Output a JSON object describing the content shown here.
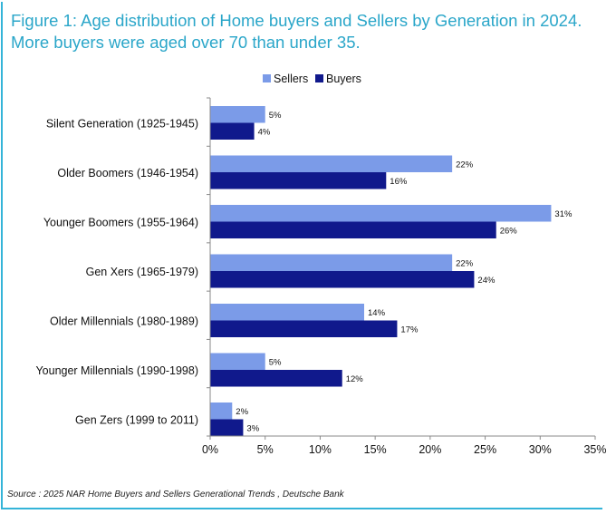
{
  "figure": {
    "title_line1": "Figure 1: Age distribution of Home buyers and Sellers by Generation in 2024.",
    "title_line2": "More buyers were aged over 70 than under 35.",
    "source": "Source : 2025 NAR Home Buyers and Sellers Generational Trends , Deutsche Bank"
  },
  "colors": {
    "sellers": "#7b9be8",
    "buyers": "#10198c",
    "title": "#2aa6c9",
    "frame": "#34b4d8"
  },
  "chart_data": {
    "type": "bar",
    "orientation": "horizontal",
    "title": "Figure 1: Age distribution of Home buyers and Sellers by Generation in 2024.",
    "subtitle": "More buyers were aged over 70 than under 35.",
    "xlabel": "",
    "ylabel": "",
    "xlim": [
      0,
      35
    ],
    "x_ticks": [
      0,
      5,
      10,
      15,
      20,
      25,
      30,
      35
    ],
    "tick_labels": [
      "0%",
      "5%",
      "10%",
      "15%",
      "20%",
      "25%",
      "30%",
      "35%"
    ],
    "grid": false,
    "legend_position": "top-center",
    "categories": [
      "Silent Generation (1925-1945)",
      "Older Boomers (1946-1954)",
      "Younger Boomers (1955-1964)",
      "Gen Xers (1965-1979)",
      "Older Millennials (1980-1989)",
      "Younger Millennials (1990-1998)",
      "Gen Zers (1999 to 2011)"
    ],
    "series": [
      {
        "name": "Sellers",
        "values": [
          5,
          22,
          31,
          22,
          14,
          5,
          2
        ],
        "labels": [
          "5%",
          "22%",
          "31%",
          "22%",
          "14%",
          "5%",
          "2%"
        ]
      },
      {
        "name": "Buyers",
        "values": [
          4,
          16,
          26,
          24,
          17,
          12,
          3
        ],
        "labels": [
          "4%",
          "16%",
          "26%",
          "24%",
          "17%",
          "12%",
          "3%"
        ]
      }
    ]
  }
}
